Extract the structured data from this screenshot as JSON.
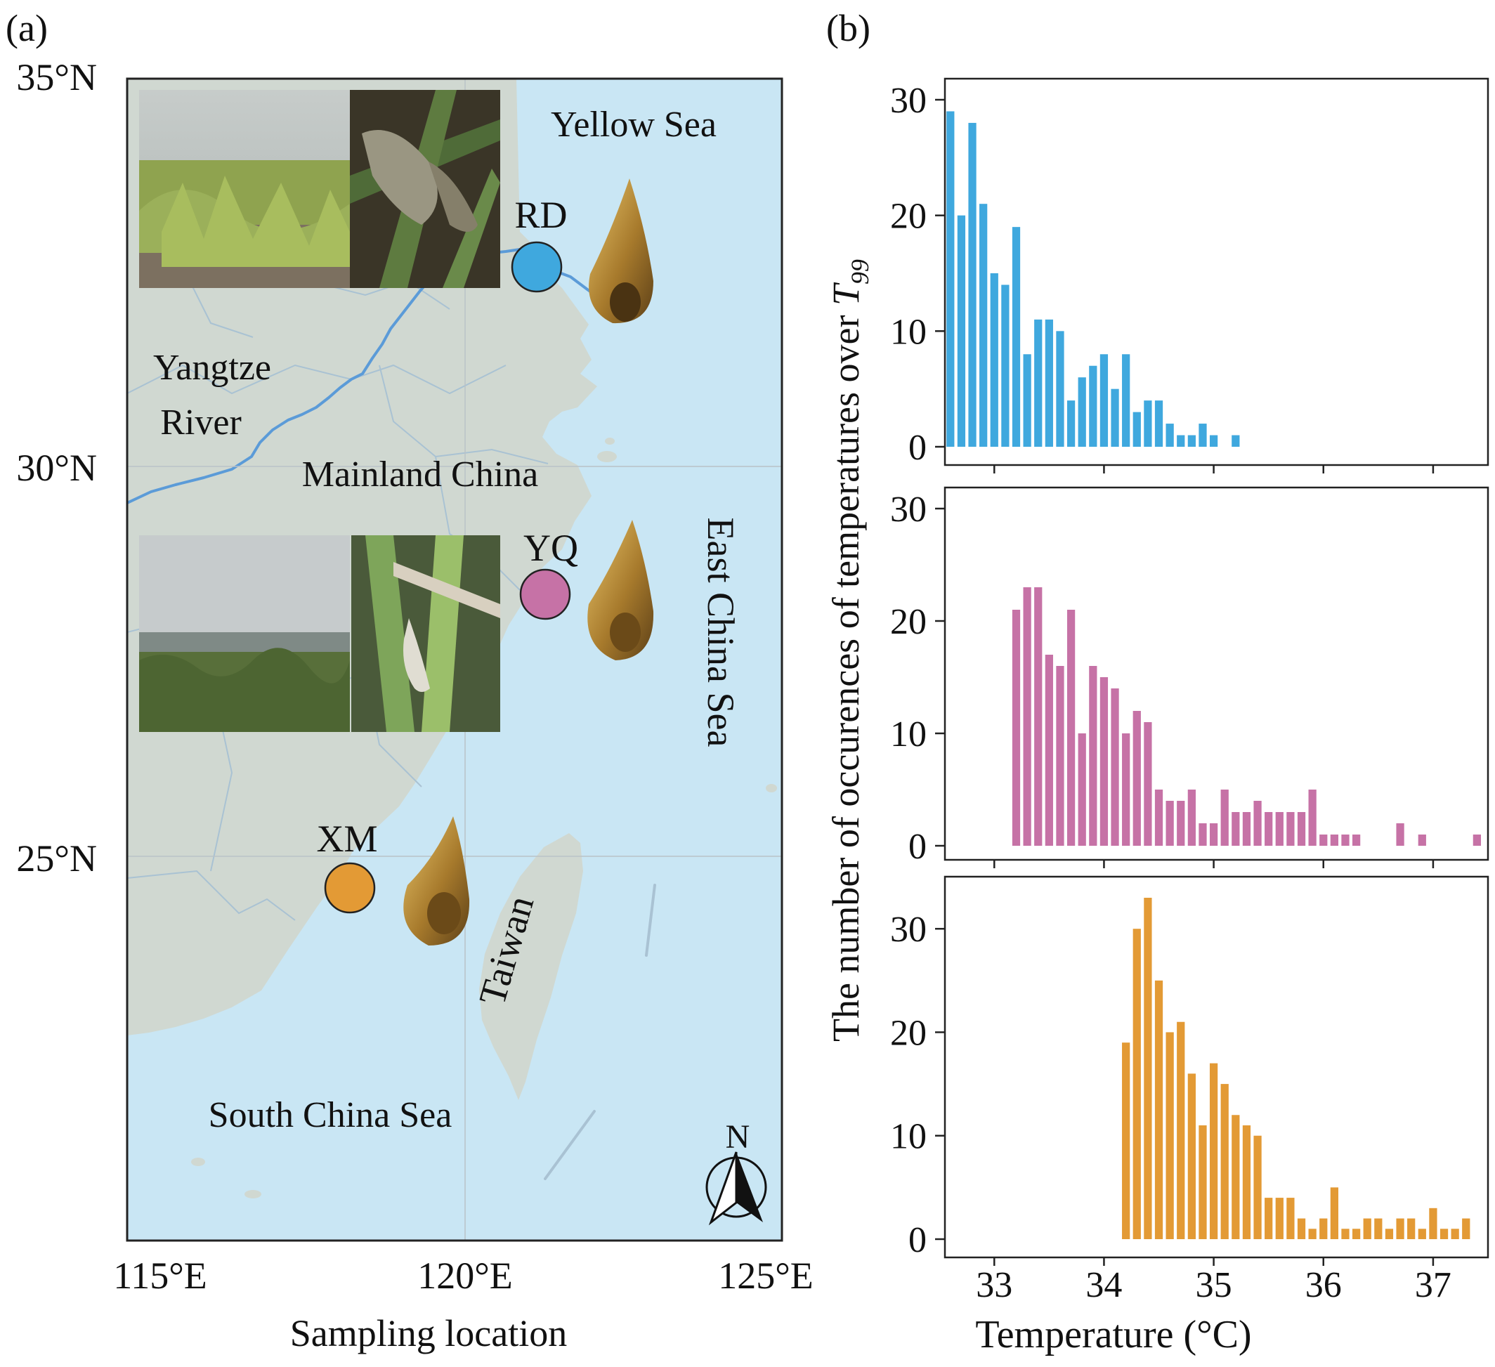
{
  "panel_labels": {
    "a": "(a)",
    "b": "(b)"
  },
  "map": {
    "colors": {
      "sea": "#c9e6f4",
      "land": "#d0d8d1",
      "river": "#5b9bd8",
      "grid": "#b9c2c7",
      "border": "#a9c2d3"
    },
    "lat_labels": [
      "35°N",
      "30°N",
      "25°N"
    ],
    "lon_labels": [
      "115°E",
      "120°E",
      "125°E"
    ],
    "xlabel": "Sampling location",
    "region_labels": {
      "yellow_sea": "Yellow Sea",
      "river_line1": "Yangtze",
      "river_line2": "River",
      "mainland": "Mainland China",
      "east_china_sea": "East China Sea",
      "taiwan": "Taiwan",
      "south_china_sea": "South China Sea"
    },
    "sites": [
      {
        "code": "RD",
        "color": "#3fa8de"
      },
      {
        "code": "YQ",
        "color": "#c672a6"
      },
      {
        "code": "XM",
        "color": "#e39a35"
      }
    ],
    "north_label": "N"
  },
  "chart_data": {
    "type": "bar",
    "xlabel": "Temperature (°C)",
    "ylabel_main": "The number of occurences of temperatures over ",
    "ylabel_symbol": "T",
    "ylabel_subscript": "99",
    "xlim": [
      32.55,
      37.5
    ],
    "xticks": [
      33,
      34,
      35,
      36,
      37
    ],
    "xtick_labels": [
      "33",
      "34",
      "35",
      "36",
      "37"
    ],
    "bin_width": 0.1,
    "panels": [
      {
        "series": "RD",
        "color": "#3fa8de",
        "ylim": [
          0,
          30
        ],
        "yticks": [
          0,
          10,
          20,
          30
        ],
        "x": [
          32.6,
          32.7,
          32.8,
          32.9,
          33.0,
          33.1,
          33.2,
          33.3,
          33.4,
          33.5,
          33.6,
          33.7,
          33.8,
          33.9,
          34.0,
          34.1,
          34.2,
          34.3,
          34.4,
          34.5,
          34.6,
          34.7,
          34.8,
          34.9,
          35.0,
          35.2
        ],
        "values": [
          29,
          20,
          28,
          21,
          15,
          14,
          19,
          8,
          11,
          11,
          10,
          4,
          6,
          7,
          8,
          5,
          8,
          3,
          4,
          4,
          2,
          1,
          1,
          2,
          1,
          1
        ]
      },
      {
        "series": "YQ",
        "color": "#c672a6",
        "ylim": [
          0,
          30
        ],
        "yticks": [
          0,
          10,
          20,
          30
        ],
        "x": [
          33.2,
          33.3,
          33.4,
          33.5,
          33.6,
          33.7,
          33.8,
          33.9,
          34.0,
          34.1,
          34.2,
          34.3,
          34.4,
          34.5,
          34.6,
          34.7,
          34.8,
          34.9,
          35.0,
          35.1,
          35.2,
          35.3,
          35.4,
          35.5,
          35.6,
          35.7,
          35.8,
          35.9,
          36.0,
          36.1,
          36.2,
          36.3,
          36.7,
          36.9,
          37.4
        ],
        "values": [
          21,
          23,
          23,
          17,
          16,
          21,
          10,
          16,
          15,
          14,
          10,
          12,
          11,
          5,
          4,
          4,
          5,
          2,
          2,
          5,
          3,
          3,
          4,
          3,
          3,
          3,
          3,
          5,
          1,
          1,
          1,
          1,
          2,
          1,
          1
        ]
      },
      {
        "series": "XM",
        "color": "#e39a35",
        "ylim": [
          0,
          33
        ],
        "yticks": [
          0,
          10,
          20,
          30
        ],
        "x": [
          34.2,
          34.3,
          34.4,
          34.5,
          34.6,
          34.7,
          34.8,
          34.9,
          35.0,
          35.1,
          35.2,
          35.3,
          35.4,
          35.5,
          35.6,
          35.7,
          35.8,
          35.9,
          36.0,
          36.1,
          36.2,
          36.3,
          36.4,
          36.5,
          36.6,
          36.7,
          36.8,
          36.9,
          37.0,
          37.1,
          37.2,
          37.3
        ],
        "values": [
          19,
          30,
          33,
          25,
          20,
          21,
          16,
          11,
          17,
          15,
          12,
          11,
          10,
          4,
          4,
          4,
          2,
          1,
          2,
          5,
          1,
          1,
          2,
          2,
          1,
          2,
          2,
          1,
          3,
          1,
          1,
          2
        ]
      }
    ]
  }
}
